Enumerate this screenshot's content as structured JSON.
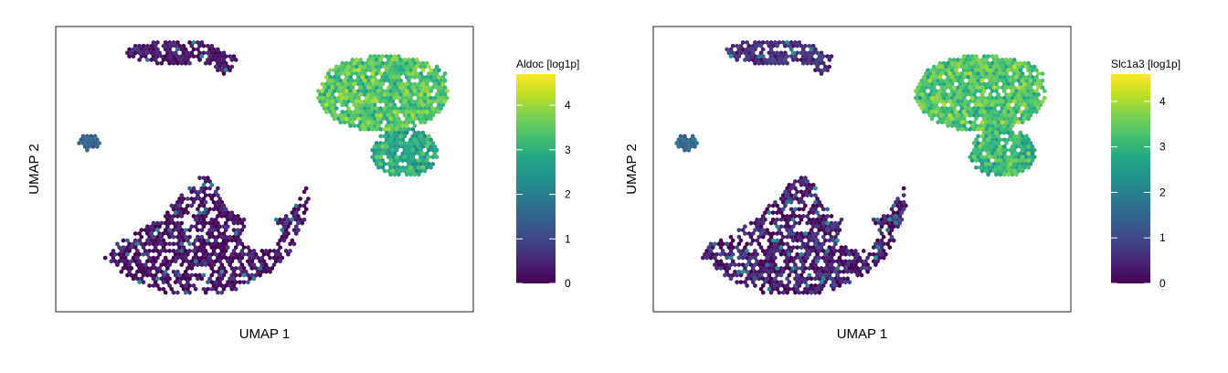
{
  "chart_data": [
    {
      "type": "heatmap",
      "subtype": "hexbin-umap",
      "xlabel": "UMAP 1",
      "ylabel": "UMAP 2",
      "colorbar": {
        "title": "Aldoc [log1p]",
        "ticks": [
          0,
          1,
          2,
          3,
          4
        ],
        "range": [
          0,
          4.7
        ],
        "colormap": "viridis"
      },
      "clusters": [
        {
          "x": 0.42,
          "y": 0.23,
          "mean": 0.2
        },
        {
          "x": 0.08,
          "y": 0.36,
          "mean": 1.4
        },
        {
          "x": 0.78,
          "y": 0.74,
          "mean": 3.4
        },
        {
          "x": 0.8,
          "y": 0.53,
          "mean": 2.9
        },
        {
          "x": 0.25,
          "y": 0.92,
          "mean": 0.15
        }
      ]
    },
    {
      "type": "heatmap",
      "subtype": "hexbin-umap",
      "xlabel": "UMAP 1",
      "ylabel": "UMAP 2",
      "colorbar": {
        "title": "Slc1a3 [log1p]",
        "ticks": [
          0,
          1,
          2,
          3,
          4
        ],
        "range": [
          0,
          4.6
        ],
        "colormap": "viridis"
      },
      "clusters": [
        {
          "x": 0.42,
          "y": 0.23,
          "mean": 0.6
        },
        {
          "x": 0.08,
          "y": 0.36,
          "mean": 1.5
        },
        {
          "x": 0.78,
          "y": 0.74,
          "mean": 3.3
        },
        {
          "x": 0.8,
          "y": 0.53,
          "mean": 3.0
        },
        {
          "x": 0.25,
          "y": 0.92,
          "mean": 0.3
        }
      ]
    }
  ]
}
